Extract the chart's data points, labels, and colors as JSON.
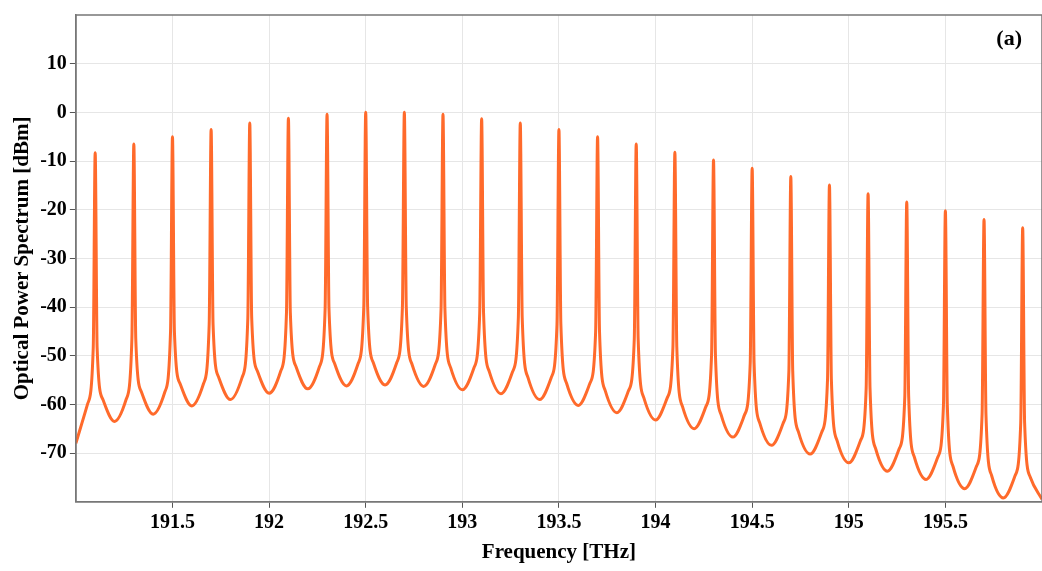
{
  "chart_data": {
    "type": "line",
    "xlabel": "Frequency [THz]",
    "ylabel": "Optical Power Spectrum [dBm]",
    "annotations": [
      "(a)"
    ],
    "xlim": [
      191,
      196
    ],
    "xticks": [
      191.5,
      192,
      192.5,
      193,
      193.5,
      194,
      194.5,
      195,
      195.5
    ],
    "ylim": [
      -80,
      20
    ],
    "yticks": [
      -70,
      -60,
      -50,
      -40,
      -30,
      -20,
      -10,
      0,
      10
    ],
    "grid": true,
    "legend": false,
    "marker": "none",
    "line_style": "solid",
    "series": [
      {
        "color": "#ff6a2b",
        "x": [
          191.0,
          191.06,
          191.09,
          191.1,
          191.11,
          191.14,
          191.2,
          191.26,
          191.29,
          191.3,
          191.31,
          191.34,
          191.4,
          191.46,
          191.49,
          191.5,
          191.51,
          191.54,
          191.6,
          191.66,
          191.69,
          191.7,
          191.71,
          191.74,
          191.8,
          191.86,
          191.89,
          191.9,
          191.91,
          191.94,
          192.0,
          192.06,
          192.09,
          192.1,
          192.11,
          192.14,
          192.2,
          192.26,
          192.29,
          192.3,
          192.31,
          192.34,
          192.4,
          192.46,
          192.49,
          192.5,
          192.51,
          192.54,
          192.6,
          192.66,
          192.69,
          192.7,
          192.71,
          192.74,
          192.8,
          192.86,
          192.89,
          192.9,
          192.91,
          192.94,
          193.0,
          193.06,
          193.09,
          193.1,
          193.11,
          193.14,
          193.2,
          193.26,
          193.29,
          193.3,
          193.31,
          193.34,
          193.4,
          193.46,
          193.49,
          193.5,
          193.51,
          193.54,
          193.6,
          193.66,
          193.69,
          193.7,
          193.71,
          193.74,
          193.8,
          193.86,
          193.89,
          193.9,
          193.91,
          193.94,
          194.0,
          194.06,
          194.09,
          194.1,
          194.11,
          194.14,
          194.2,
          194.26,
          194.29,
          194.3,
          194.31,
          194.34,
          194.4,
          194.46,
          194.49,
          194.5,
          194.51,
          194.54,
          194.6,
          194.66,
          194.69,
          194.7,
          194.71,
          194.74,
          194.8,
          194.86,
          194.89,
          194.9,
          194.91,
          194.94,
          195.0,
          195.06,
          195.09,
          195.1,
          195.11,
          195.14,
          195.2,
          195.26,
          195.29,
          195.3,
          195.31,
          195.34,
          195.4,
          195.46,
          195.49,
          195.5,
          195.51,
          195.54,
          195.6,
          195.66,
          195.69,
          195.7,
          195.71,
          195.74,
          195.8,
          195.86,
          195.89,
          195.9,
          195.91,
          195.94,
          196.0
        ],
        "values": [
          -68,
          -60,
          -48.3,
          -8.3,
          -48.3,
          -59,
          -63.5,
          -59,
          -46.5,
          -6.5,
          -46.5,
          -57.5,
          -62,
          -57.5,
          -45,
          -5,
          -45,
          -55.8,
          -60.3,
          -55.8,
          -43.5,
          -3.5,
          -43.5,
          -54.5,
          -59,
          -54.5,
          -42.2,
          -2.2,
          -42.2,
          -53.2,
          -57.7,
          -53.2,
          -41.2,
          -1.2,
          -41.2,
          -52.3,
          -56.8,
          -52.3,
          -40.4,
          -0.4,
          -40.4,
          -51.7,
          -56.2,
          -51.7,
          -40,
          0,
          -40,
          -51.5,
          -56,
          -51.5,
          -40,
          0,
          -40,
          -51.8,
          -56.3,
          -51.8,
          -40.4,
          -0.4,
          -40.4,
          -52.5,
          -57,
          -52.5,
          -41.3,
          -1.3,
          -41.3,
          -53.3,
          -57.8,
          -53.3,
          -42.2,
          -2.2,
          -42.2,
          -54.5,
          -59,
          -54.5,
          -43.5,
          -3.5,
          -43.5,
          -55.7,
          -60.2,
          -55.7,
          -45,
          -5,
          -45,
          -57.2,
          -61.7,
          -57.2,
          -46.5,
          -6.5,
          -46.5,
          -58.7,
          -63.2,
          -58.7,
          -48.2,
          -8.2,
          -48.2,
          -60.5,
          -65,
          -60.5,
          -49.8,
          -9.8,
          -49.8,
          -62.2,
          -66.7,
          -62.2,
          -51.5,
          -11.5,
          -51.5,
          -63.9,
          -68.4,
          -63.9,
          -53.2,
          -13.2,
          -53.2,
          -65.7,
          -70.2,
          -65.7,
          -54.9,
          -14.9,
          -54.9,
          -67.5,
          -72,
          -67.5,
          -56.7,
          -16.7,
          -56.7,
          -69.2,
          -73.7,
          -69.2,
          -58.4,
          -18.4,
          -58.4,
          -70.9,
          -75.4,
          -70.9,
          -60.2,
          -20.2,
          -60.2,
          -72.8,
          -77.3,
          -72.8,
          -62,
          -22,
          -62,
          -74.7,
          -79.2,
          -74.7,
          -63.7,
          -23.7,
          -63.7,
          -75,
          -79.5
        ]
      }
    ]
  }
}
